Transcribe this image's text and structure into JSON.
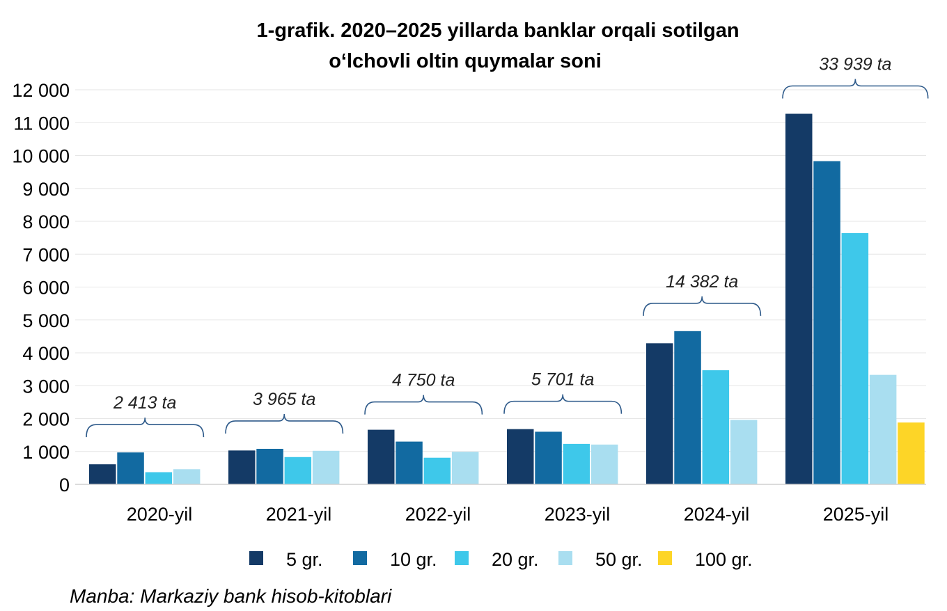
{
  "chart_data": {
    "type": "bar",
    "title_lines": [
      "1-grafik. 2020–2025 yillarda banklar orqali sotilgan",
      "o‘lchovli oltin quymalar soni"
    ],
    "categories": [
      "2020-yil",
      "2021-yil",
      "2022-yil",
      "2023-yil",
      "2024-yil",
      "2025-yil"
    ],
    "series": [
      {
        "name": "5 gr.",
        "color": "#143a66",
        "values": [
          610,
          1030,
          1660,
          1680,
          4290,
          11270
        ]
      },
      {
        "name": "10 gr.",
        "color": "#126aa1",
        "values": [
          970,
          1080,
          1300,
          1600,
          4660,
          9830
        ]
      },
      {
        "name": "20 gr.",
        "color": "#3ec8ea",
        "values": [
          370,
          830,
          810,
          1230,
          3470,
          7640
        ]
      },
      {
        "name": "50 gr.",
        "color": "#a9def0",
        "values": [
          460,
          1020,
          990,
          1210,
          1960,
          3330
        ]
      },
      {
        "name": "100 gr.",
        "color": "#fdd527",
        "values": [
          0,
          0,
          0,
          0,
          0,
          1880
        ]
      }
    ],
    "totals": [
      "2 413 ta",
      "3 965 ta",
      "4 750 ta",
      "5 701 ta",
      "14 382 ta",
      "33 939 ta"
    ],
    "yticks": [
      0,
      1000,
      2000,
      3000,
      4000,
      5000,
      6000,
      7000,
      8000,
      9000,
      10000,
      11000,
      12000
    ],
    "ytick_labels": [
      "0",
      "1 000",
      "2 000",
      "3 000",
      "4 000",
      "5 000",
      "6 000",
      "7 000",
      "8 000",
      "9 000",
      "10 000",
      "11 000",
      "12 000"
    ],
    "ylim": [
      0,
      12000
    ],
    "xlabel": "",
    "ylabel": "",
    "grid": true,
    "legend_position": "bottom",
    "source": "Manba: Markaziy bank hisob-kitoblari"
  }
}
